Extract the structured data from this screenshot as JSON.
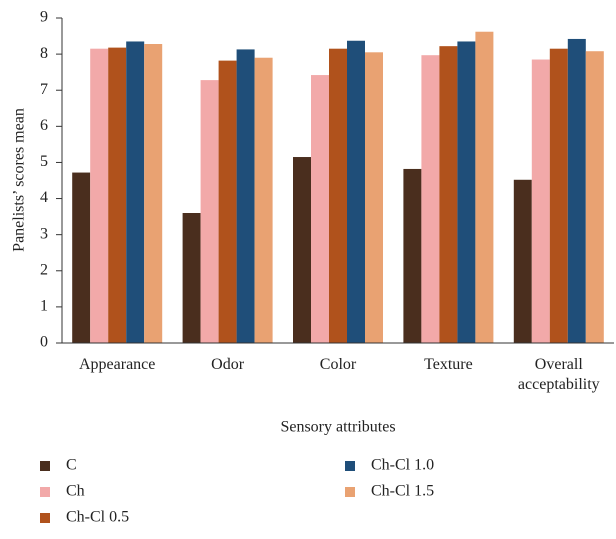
{
  "chart_data": {
    "type": "bar",
    "xlabel": "Sensory attributes",
    "ylabel": "Panelists’ scores mean",
    "categories": [
      "Appearance",
      "Odor",
      "Color",
      "Texture",
      "Overall acceptability"
    ],
    "series": [
      {
        "name": "C",
        "color": "#4a2e1e",
        "values": [
          4.72,
          3.6,
          5.15,
          4.82,
          4.52
        ]
      },
      {
        "name": "Ch",
        "color": "#f2a9a9",
        "values": [
          8.15,
          7.28,
          7.42,
          7.97,
          7.85
        ]
      },
      {
        "name": "Ch-Cl 0.5",
        "color": "#b0521c",
        "values": [
          8.18,
          7.82,
          8.15,
          8.22,
          8.15
        ]
      },
      {
        "name": "Ch-Cl 1.0",
        "color": "#1f4e79",
        "values": [
          8.35,
          8.13,
          8.37,
          8.35,
          8.42
        ]
      },
      {
        "name": "Ch-Cl 1.5",
        "color": "#e9a272",
        "values": [
          8.28,
          7.9,
          8.05,
          8.62,
          8.08
        ]
      }
    ],
    "ylim": [
      0,
      9
    ],
    "yticks": [
      0,
      1,
      2,
      3,
      4,
      5,
      6,
      7,
      8,
      9
    ],
    "grid": false
  }
}
